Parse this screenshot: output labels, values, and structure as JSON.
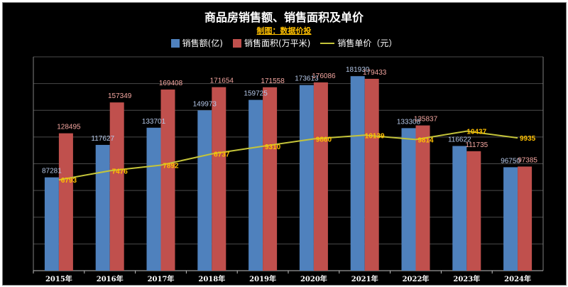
{
  "chart_data": {
    "type": "bar",
    "title": "商品房销售额、销售面积及单价",
    "subtitle": "制图：数据价投",
    "categories": [
      "2015年",
      "2016年",
      "2017年",
      "2018年",
      "2019年",
      "2020年",
      "2021年",
      "2022年",
      "2023年",
      "2024年"
    ],
    "series": [
      {
        "name": "销售额(亿)",
        "type": "bar",
        "color": "#4f81bd",
        "values": [
          87281,
          117627,
          133701,
          149973,
          159725,
          173613,
          181930,
          133308,
          116622,
          96750
        ]
      },
      {
        "name": "销售面积(万平米)",
        "type": "bar",
        "color": "#c0504d",
        "values": [
          128495,
          157349,
          169408,
          171654,
          171558,
          176086,
          179433,
          135837,
          111735,
          97385
        ]
      },
      {
        "name": "销售单价（元）",
        "type": "line",
        "color": "#c4c43a",
        "values": [
          6793,
          7476,
          7892,
          8737,
          9310,
          9860,
          10139,
          9814,
          10437,
          9935
        ]
      }
    ],
    "ylim_bar": [
      0,
      200000
    ],
    "ylim_line": [
      0,
      16000
    ],
    "grid": true,
    "legend": "top"
  },
  "colors": {
    "background": "#000000",
    "bar_label": "#b4c7e7",
    "area_label": "#f4a6a0",
    "line_label": "#ffc000",
    "axis_label": "#ffffff"
  }
}
